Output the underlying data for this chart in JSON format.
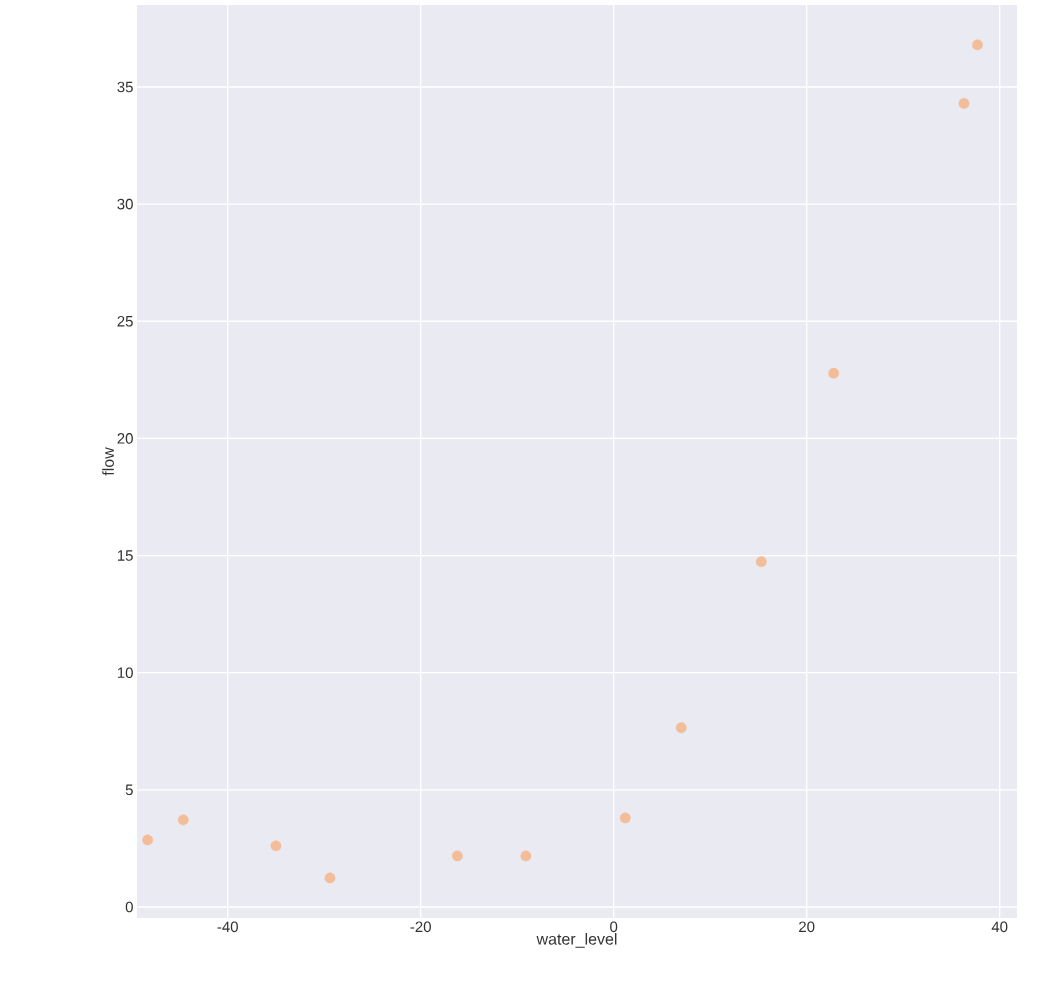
{
  "chart_data": {
    "type": "scatter",
    "xlabel": "water_level",
    "ylabel": "flow",
    "x": [
      -48.3,
      -44.6,
      -35.0,
      -29.4,
      -16.2,
      -9.1,
      1.2,
      7.0,
      15.3,
      22.8,
      36.3,
      37.7
    ],
    "series": [
      {
        "color": "#f2bd98",
        "values": [
          2.86,
          3.72,
          2.61,
          1.24,
          2.18,
          2.18,
          3.8,
          7.65,
          14.74,
          22.78,
          34.3,
          36.8
        ]
      }
    ],
    "xlim": [
      -49.4,
      41.8
    ],
    "ylim": [
      -0.47,
      38.5
    ],
    "xticks": [
      -40,
      -20,
      0,
      20,
      40
    ],
    "yticks": [
      0,
      5,
      10,
      15,
      20,
      25,
      30,
      35
    ],
    "grid": true,
    "marker": "circle"
  }
}
